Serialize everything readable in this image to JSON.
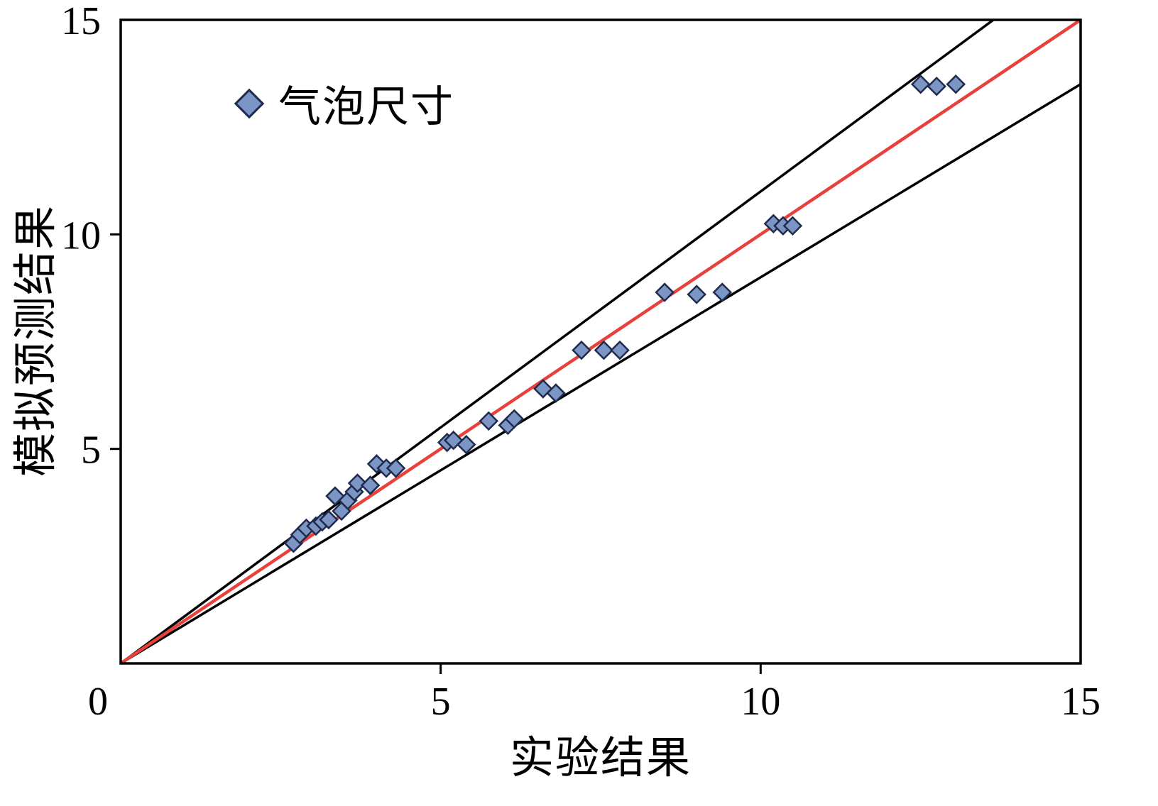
{
  "page": {
    "background": "#ffffff"
  },
  "chart_data": {
    "type": "scatter",
    "title": "",
    "xlabel": "实验结果",
    "ylabel": "模拟预测结果",
    "xlim": [
      0,
      15
    ],
    "ylim": [
      0,
      15
    ],
    "x_ticks": [
      0,
      5,
      10,
      15
    ],
    "y_ticks": [
      5,
      10,
      15
    ],
    "grid": false,
    "legend": {
      "position": "top-left-inside",
      "label": "气泡尺寸",
      "marker": "diamond",
      "marker_fill": "#7b95c4",
      "marker_stroke": "#1f2a4d"
    },
    "reference_lines": [
      {
        "name": "upper-bound-line",
        "slope": 1.1,
        "color": "#000000",
        "width": 3.5
      },
      {
        "name": "lower-bound-line",
        "slope": 0.9,
        "color": "#000000",
        "width": 3.5
      },
      {
        "name": "parity-line",
        "slope": 1.0,
        "color": "#e8413c",
        "width": 4.5
      }
    ],
    "series": [
      {
        "name": "气泡尺寸",
        "points": [
          [
            2.7,
            2.8
          ],
          [
            2.8,
            3.0
          ],
          [
            2.9,
            3.15
          ],
          [
            3.05,
            3.2
          ],
          [
            3.15,
            3.3
          ],
          [
            3.25,
            3.35
          ],
          [
            3.35,
            3.9
          ],
          [
            3.45,
            3.55
          ],
          [
            3.55,
            3.8
          ],
          [
            3.65,
            4.0
          ],
          [
            3.7,
            4.2
          ],
          [
            3.9,
            4.15
          ],
          [
            4.0,
            4.65
          ],
          [
            4.15,
            4.55
          ],
          [
            4.3,
            4.55
          ],
          [
            5.1,
            5.15
          ],
          [
            5.2,
            5.2
          ],
          [
            5.4,
            5.1
          ],
          [
            5.75,
            5.65
          ],
          [
            6.05,
            5.55
          ],
          [
            6.15,
            5.7
          ],
          [
            6.6,
            6.4
          ],
          [
            6.8,
            6.3
          ],
          [
            7.2,
            7.3
          ],
          [
            7.55,
            7.3
          ],
          [
            7.8,
            7.3
          ],
          [
            8.5,
            8.65
          ],
          [
            9.0,
            8.6
          ],
          [
            9.4,
            8.65
          ],
          [
            10.2,
            10.25
          ],
          [
            10.35,
            10.2
          ],
          [
            10.5,
            10.2
          ],
          [
            12.5,
            13.5
          ],
          [
            12.75,
            13.45
          ],
          [
            13.05,
            13.5
          ]
        ]
      }
    ]
  }
}
